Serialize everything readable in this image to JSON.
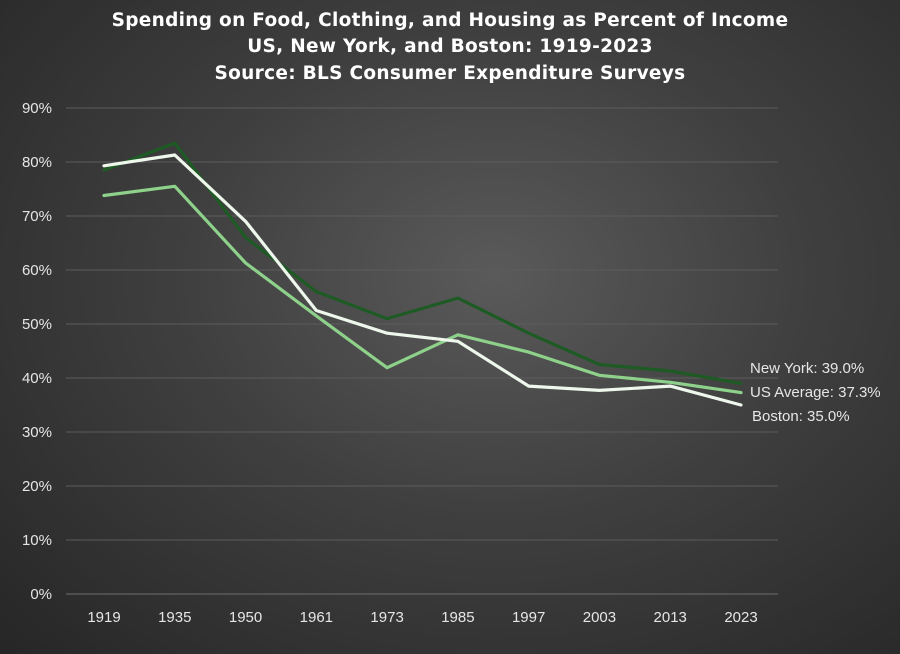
{
  "chart_data": {
    "type": "line",
    "title": "Spending on Food, Clothing, and Housing as Percent of Income",
    "subtitle": "US, New York, and Boston: 1919-2023",
    "source": "Source: BLS Consumer Expenditure Surveys",
    "xlabel": "",
    "ylabel": "",
    "ylim": [
      0,
      90
    ],
    "ytick_step": 10,
    "grid": true,
    "legend": "none (direct end labels)",
    "categories": [
      "1919",
      "1935",
      "1950",
      "1961",
      "1973",
      "1985",
      "1997",
      "2003",
      "2013",
      "2023"
    ],
    "series": [
      {
        "name": "New York",
        "color": "#1e5a24",
        "values": [
          78.5,
          83.5,
          66.0,
          56.0,
          51.0,
          54.8,
          48.3,
          42.5,
          41.3,
          39.0
        ],
        "end_label": "New York: 39.0%"
      },
      {
        "name": "US Average",
        "color": "#8ed18a",
        "values": [
          73.8,
          75.5,
          61.3,
          51.5,
          41.9,
          48.0,
          44.8,
          40.5,
          39.2,
          37.3
        ],
        "end_label": "US Average: 37.3%"
      },
      {
        "name": "Boston",
        "color": "#eef7ec",
        "values": [
          79.3,
          81.3,
          69.0,
          52.5,
          48.3,
          46.8,
          38.5,
          37.7,
          38.5,
          35.0
        ],
        "end_label": "Boston: 35.0%"
      }
    ]
  }
}
